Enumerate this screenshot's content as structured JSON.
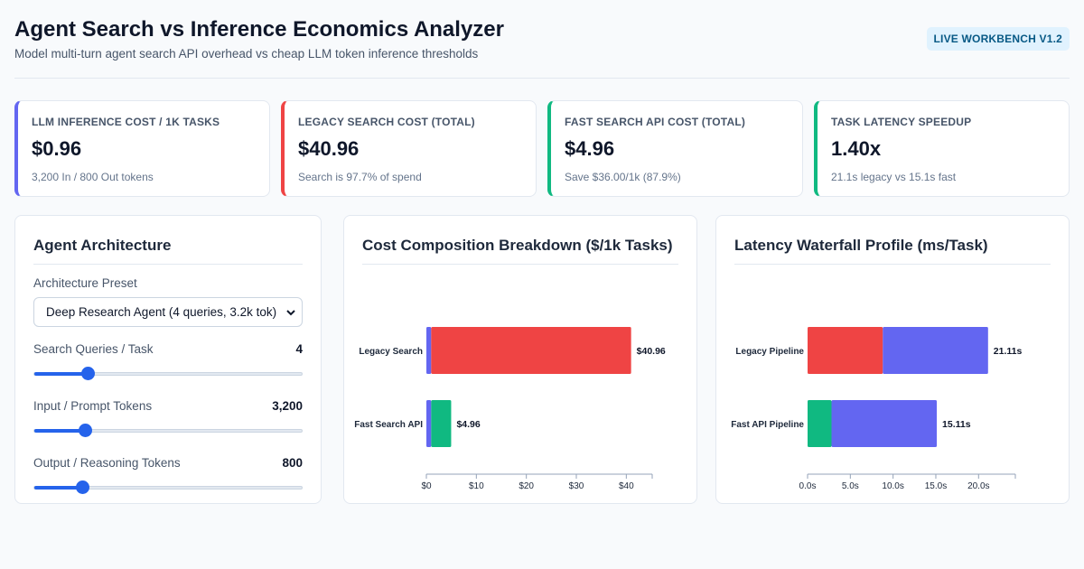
{
  "header": {
    "title": "Agent Search vs Inference Economics Analyzer",
    "subtitle": "Model multi-turn agent search API overhead vs cheap LLM token inference thresholds",
    "badge": "LIVE WORKBENCH V1.2"
  },
  "kpis": [
    {
      "label": "LLM INFERENCE COST / 1K TASKS",
      "value": "$0.96",
      "sub": "3,200 In / 800 Out tokens",
      "color": "#6366f1"
    },
    {
      "label": "LEGACY SEARCH COST (TOTAL)",
      "value": "$40.96",
      "sub": "Search is 97.7% of spend",
      "color": "#ef4444"
    },
    {
      "label": "FAST SEARCH API COST (TOTAL)",
      "value": "$4.96",
      "sub": "Save $36.00/1k (87.9%)",
      "color": "#10b981"
    },
    {
      "label": "TASK LATENCY SPEEDUP",
      "value": "1.40x",
      "sub": "21.1s legacy vs 15.1s fast",
      "color": "#10b981"
    }
  ],
  "architecture": {
    "title": "Agent Architecture",
    "preset_label": "Architecture Preset",
    "preset_value": "Deep Research Agent (4 queries, 3.2k tok)",
    "sliders": [
      {
        "label": "Search Queries / Task",
        "value": "4",
        "fraction": 0.2
      },
      {
        "label": "Input / Prompt Tokens",
        "value": "3,200",
        "fraction": 0.19
      },
      {
        "label": "Output / Reasoning Tokens",
        "value": "800",
        "fraction": 0.18
      }
    ]
  },
  "cost_chart": {
    "title": "Cost Composition Breakdown ($/1k Tasks)",
    "chart_data": {
      "type": "bar",
      "orientation": "horizontal",
      "stacked": true,
      "categories": [
        "Legacy Search",
        "Fast Search API"
      ],
      "series": [
        {
          "values": [
            0.96,
            0.96
          ],
          "color": "#6366f1"
        },
        {
          "values": [
            40.0,
            4.0
          ],
          "colors": [
            "#ef4444",
            "#10b981"
          ]
        }
      ],
      "totals": [
        "$40.96",
        "$4.96"
      ],
      "xticks": [
        "$0",
        "$10",
        "$20",
        "$30",
        "$40"
      ],
      "xlim": [
        0,
        45
      ]
    }
  },
  "latency_chart": {
    "title": "Latency Waterfall Profile (ms/Task)",
    "chart_data": {
      "type": "bar",
      "orientation": "horizontal",
      "stacked": true,
      "categories": [
        "Legacy Pipeline",
        "Fast API Pipeline"
      ],
      "series": [
        {
          "values": [
            8.8,
            2.8
          ],
          "colors": [
            "#ef4444",
            "#10b981"
          ]
        },
        {
          "values": [
            12.31,
            12.31
          ],
          "color": "#6366f1"
        }
      ],
      "totals": [
        "21.11s",
        "15.11s"
      ],
      "xticks": [
        "0.0s",
        "5.0s",
        "10.0s",
        "15.0s",
        "20.0s"
      ],
      "xlim": [
        0,
        24.3
      ]
    }
  }
}
